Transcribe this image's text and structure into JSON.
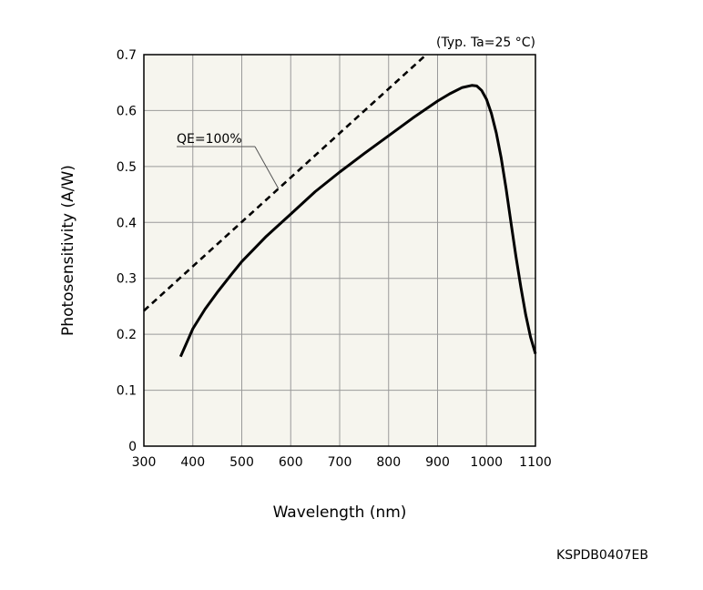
{
  "chart_data": {
    "type": "line",
    "title": "",
    "condition_note": "(Typ. Ta=25 °C)",
    "xlabel": "Wavelength (nm)",
    "ylabel": "Photosensitivity (A/W)",
    "xlim": [
      300,
      1100
    ],
    "ylim": [
      0,
      0.7
    ],
    "x_ticks": [
      "300",
      "400",
      "500",
      "600",
      "700",
      "800",
      "900",
      "1000",
      "1100"
    ],
    "y_ticks": [
      "0",
      "0.1",
      "0.2",
      "0.3",
      "0.4",
      "0.5",
      "0.6",
      "0.7"
    ],
    "grid": true,
    "series": [
      {
        "name": "",
        "style": "solid",
        "x": [
          375,
          390,
          400,
          425,
          450,
          475,
          500,
          550,
          600,
          650,
          700,
          750,
          800,
          850,
          900,
          925,
          950,
          970,
          980,
          990,
          1000,
          1010,
          1020,
          1030,
          1040,
          1050,
          1060,
          1070,
          1080,
          1090,
          1100
        ],
        "y": [
          0.16,
          0.19,
          0.21,
          0.245,
          0.275,
          0.303,
          0.33,
          0.375,
          0.415,
          0.455,
          0.49,
          0.523,
          0.555,
          0.587,
          0.617,
          0.63,
          0.641,
          0.645,
          0.644,
          0.636,
          0.62,
          0.595,
          0.56,
          0.515,
          0.46,
          0.4,
          0.34,
          0.285,
          0.235,
          0.195,
          0.165
        ]
      },
      {
        "name": "QE=100%",
        "style": "dashed",
        "x": [
          300,
          877
        ],
        "y": [
          0.242,
          0.7
        ]
      }
    ],
    "annotations": [
      {
        "text": "QE=100%",
        "target_series": "QE=100%",
        "target_x": 575
      }
    ],
    "figure_code": "KSPDB0407EB",
    "colors": {
      "background": "#ffffff",
      "plot_area": "#f6f5ee",
      "grid": "#9a9a9a",
      "line": "#000000"
    }
  }
}
